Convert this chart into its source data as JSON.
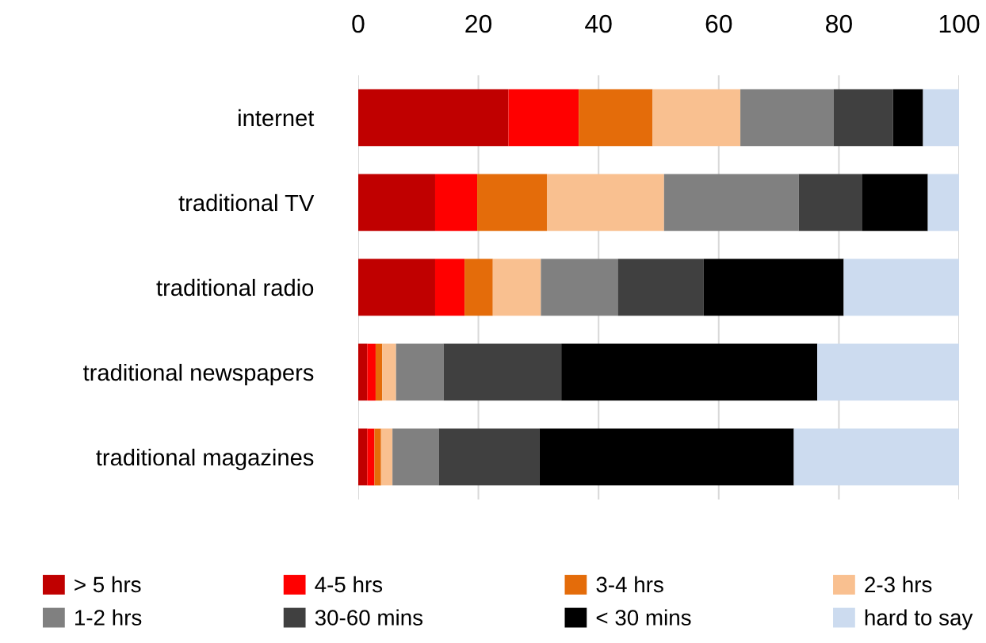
{
  "chart_data": {
    "type": "bar",
    "orientation": "horizontal",
    "stacked": true,
    "categories": [
      "internet",
      "traditional TV",
      "traditional radio",
      "traditional newspapers",
      "traditional magazines"
    ],
    "series": [
      {
        "name": "> 5 hrs",
        "color": "#c00000",
        "values": [
          25,
          12.8,
          12.8,
          1.5,
          1.5
        ]
      },
      {
        "name": "4-5 hrs",
        "color": "#ff0000",
        "values": [
          11.7,
          7.0,
          4.9,
          1.4,
          1.2
        ]
      },
      {
        "name": "3-4 hrs",
        "color": "#e46c0a",
        "values": [
          12.3,
          11.6,
          4.7,
          1.1,
          1.1
        ]
      },
      {
        "name": "2-3 hrs",
        "color": "#f9c090",
        "values": [
          14.6,
          19.5,
          8.0,
          2.3,
          1.9
        ]
      },
      {
        "name": "1-2 hrs",
        "color": "#808080",
        "values": [
          15.5,
          22.4,
          12.8,
          7.9,
          7.7
        ]
      },
      {
        "name": "30-60 mins",
        "color": "#404040",
        "values": [
          9.9,
          10.6,
          14.3,
          19.6,
          16.8
        ]
      },
      {
        "name": "< 30 mins",
        "color": "#000000",
        "values": [
          5.0,
          10.9,
          23.3,
          42.6,
          42.3
        ]
      },
      {
        "name": "hard to say",
        "color": "#ccdbef",
        "values": [
          6.0,
          5.2,
          19.2,
          23.6,
          27.5
        ]
      }
    ],
    "xlim": [
      0,
      100
    ],
    "xticks": [
      0,
      20,
      40,
      60,
      80,
      100
    ],
    "grid": "x",
    "legend": "bottom"
  }
}
